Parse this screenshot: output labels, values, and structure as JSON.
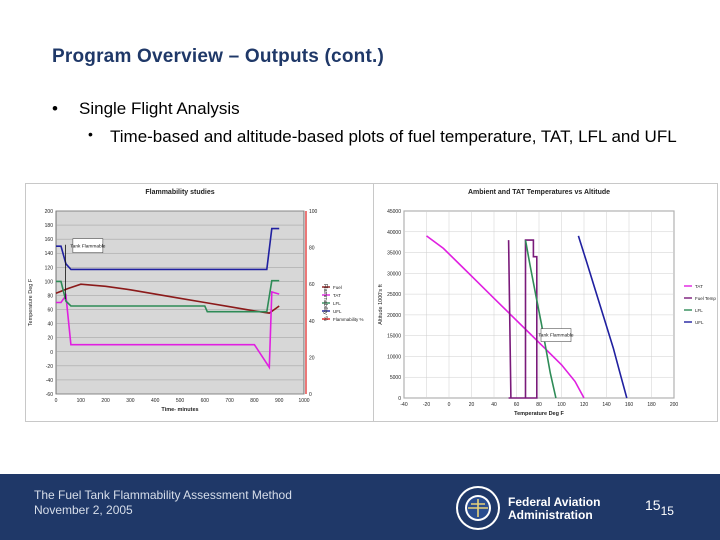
{
  "slide": {
    "title": "Program Overview – Outputs (cont.)",
    "bullet1": "Single Flight Analysis",
    "bullet2": "Time-based and altitude-based plots of fuel temperature, TAT, LFL and UFL",
    "bullet_mark": "•"
  },
  "footer": {
    "line1": "The Fuel Tank Flammability Assessment Method",
    "line2": "November 2, 2005",
    "org_line1": "Federal Aviation",
    "org_line2": "Administration",
    "page_number": "15",
    "page_number_sub": "15"
  },
  "chart_data": [
    {
      "type": "line",
      "title": "Flammability studies",
      "xlabel": "Time- minutes",
      "ylabel": "Temperature Deg F",
      "y2label": "Flammability %",
      "xlim": [
        0,
        1000
      ],
      "ylim": [
        -60,
        200
      ],
      "y2lim": [
        0,
        100
      ],
      "x_ticks": [
        "0",
        "100",
        "200",
        "300",
        "400",
        "500",
        "600",
        "700",
        "800",
        "900",
        "1000"
      ],
      "y_ticks": [
        "200",
        "180",
        "160",
        "140",
        "120",
        "100",
        "80",
        "60",
        "40",
        "20",
        "0",
        "-20",
        "-40",
        "-60"
      ],
      "y2_ticks": [
        "100",
        "80",
        "60",
        "40",
        "20",
        "0"
      ],
      "annotation": "Tank Flammable",
      "legend_position": "right",
      "colors": {
        "Fuel": "#8b1a1a",
        "TAT": "#e020e0",
        "LFL": "#2e8b57",
        "UFL": "#2020a0",
        "Flammability %": "#e02020"
      },
      "series": [
        {
          "name": "Fuel",
          "x": [
            0,
            50,
            100,
            200,
            300,
            400,
            500,
            600,
            700,
            800,
            860,
            900
          ],
          "y": [
            83,
            90,
            96,
            93,
            88,
            82,
            76,
            70,
            64,
            58,
            55,
            65
          ]
        },
        {
          "name": "TAT",
          "x": [
            0,
            20,
            40,
            60,
            800,
            860,
            870,
            900
          ],
          "y": [
            70,
            70,
            80,
            10,
            10,
            -22,
            85,
            82
          ]
        },
        {
          "name": "LFL",
          "x": [
            0,
            20,
            40,
            60,
            600,
            610,
            850,
            870,
            900
          ],
          "y": [
            100,
            100,
            72,
            65,
            65,
            57,
            57,
            101,
            101
          ]
        },
        {
          "name": "UFL",
          "x": [
            0,
            20,
            40,
            60,
            850,
            870,
            900
          ],
          "y": [
            150,
            150,
            125,
            117,
            117,
            175,
            175
          ]
        },
        {
          "name": "Flammability %",
          "x": [],
          "y": []
        }
      ]
    },
    {
      "type": "line",
      "title": "Ambient and TAT Temperatures vs Altitude",
      "xlabel": "Temperature Deg F",
      "ylabel": "Altitude 1000's ft",
      "xlim": [
        -40,
        200
      ],
      "ylim": [
        0,
        45000
      ],
      "x_ticks": [
        "-40",
        "-20",
        "0",
        "20",
        "40",
        "60",
        "80",
        "100",
        "120",
        "140",
        "160",
        "180",
        "200"
      ],
      "y_ticks": [
        "45000",
        "40000",
        "35000",
        "30000",
        "25000",
        "20000",
        "15000",
        "10000",
        "5000",
        "0"
      ],
      "annotation": "Tank Flammable",
      "legend_position": "right",
      "colors": {
        "TAT": "#e020e0",
        "Fuel Temp": "#7a1a7a",
        "LFL": "#2e8b57",
        "UFL": "#2020a0"
      },
      "series": [
        {
          "name": "TAT",
          "x": [
            -20,
            -5,
            10,
            25,
            40,
            55,
            70,
            85,
            100,
            112,
            120
          ],
          "y": [
            39000,
            36000,
            32000,
            28000,
            24000,
            20000,
            16000,
            12000,
            8000,
            4000,
            0
          ]
        },
        {
          "name": "Fuel Temp",
          "x": [
            53,
            68,
            68,
            75,
            75,
            78,
            78,
            55,
            53
          ],
          "y": [
            0,
            0,
            38000,
            38000,
            34000,
            34000,
            0,
            0,
            38000
          ]
        },
        {
          "name": "LFL",
          "x": [
            68,
            72,
            77,
            82,
            86,
            90,
            95
          ],
          "y": [
            38000,
            32000,
            25000,
            18000,
            12000,
            6000,
            0
          ]
        },
        {
          "name": "UFL",
          "x": [
            115,
            122,
            130,
            138,
            146,
            152,
            158
          ],
          "y": [
            39000,
            33000,
            26000,
            19000,
            12000,
            6000,
            0
          ]
        }
      ]
    }
  ]
}
